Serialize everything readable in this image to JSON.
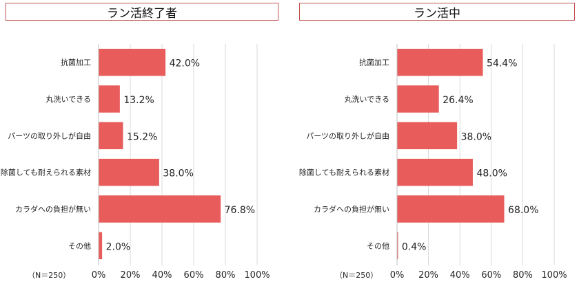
{
  "chart_data": [
    {
      "type": "bar",
      "orientation": "horizontal",
      "title": "ラン活終了者",
      "categories": [
        "抗菌加工",
        "丸洗いできる",
        "パーツの取り外しが自由",
        "除菌しても耐えられる素材",
        "カラダへの負担が無い",
        "その他"
      ],
      "values": [
        42.0,
        13.2,
        15.2,
        38.0,
        76.8,
        2.0
      ],
      "value_labels": [
        "42.0%",
        "13.2%",
        "15.2%",
        "38.0%",
        "76.8%",
        "2.0%"
      ],
      "xlim": [
        0,
        100
      ],
      "ticks": [
        "0%",
        "20%",
        "40%",
        "60%",
        "80%",
        "100%"
      ],
      "tick_values": [
        0,
        20,
        40,
        60,
        80,
        100
      ],
      "n_label": "（N＝250）",
      "grid": true,
      "bar_color": "#e85c5c"
    },
    {
      "type": "bar",
      "orientation": "horizontal",
      "title": "ラン活中",
      "categories": [
        "抗菌加工",
        "丸洗いできる",
        "パーツの取り外しが自由",
        "除菌しても耐えられる素材",
        "カラダへの負担が無い",
        "その他"
      ],
      "values": [
        54.4,
        26.4,
        38.0,
        48.0,
        68.0,
        0.4
      ],
      "value_labels": [
        "54.4%",
        "26.4%",
        "38.0%",
        "48.0%",
        "68.0%",
        "0.4%"
      ],
      "xlim": [
        0,
        100
      ],
      "ticks": [
        "0%",
        "20%",
        "40%",
        "60%",
        "80%",
        "100%"
      ],
      "tick_values": [
        0,
        20,
        40,
        60,
        80,
        100
      ],
      "n_label": "（N＝250）",
      "grid": true,
      "bar_color": "#e85c5c"
    }
  ]
}
